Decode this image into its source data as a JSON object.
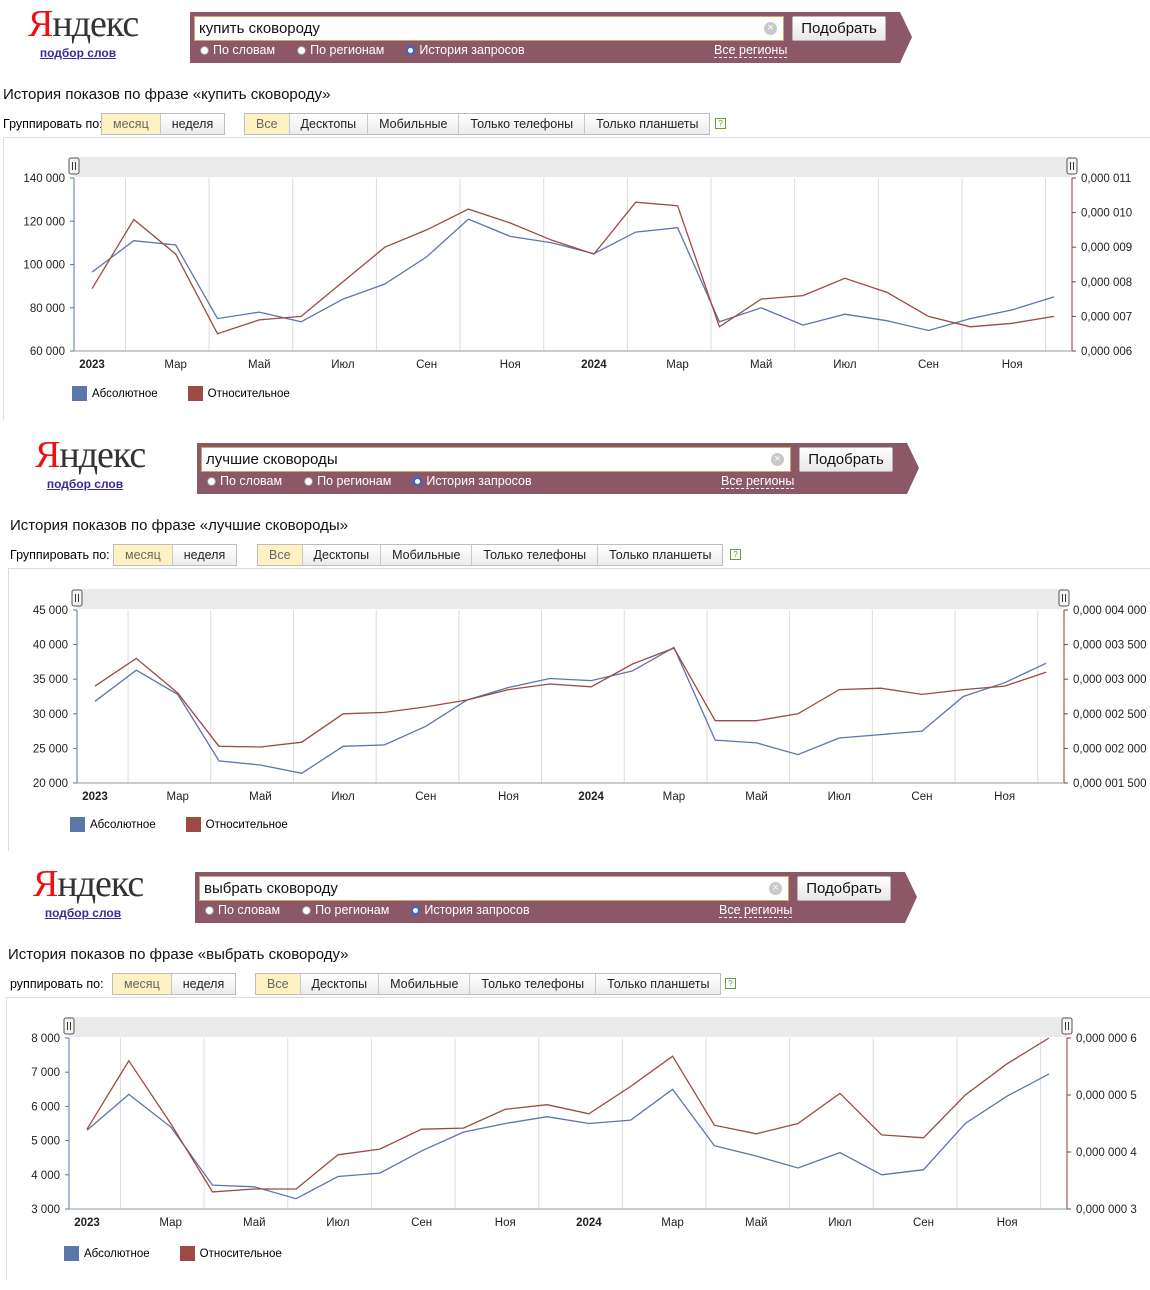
{
  "logo": {
    "word_first": "Я",
    "word_rest": "ндекс",
    "sub": "подбор слов"
  },
  "search": {
    "pick_button": "Подобрать",
    "radio_words": "По словам",
    "radio_regions": "По регионам",
    "radio_history": "История запросов",
    "all_regions": "Все регионы"
  },
  "group": {
    "label": "Группировать по:",
    "month": "месяц",
    "week": "неделя",
    "devices": [
      "Все",
      "Десктопы",
      "Мобильные",
      "Только телефоны",
      "Только планшеты"
    ]
  },
  "colors": {
    "absolute": "#5b76a8",
    "relative": "#9c4a42",
    "bar": "#8c5868",
    "axis_right": "#8b3a34"
  },
  "legend": {
    "absolute": "Абсолютное",
    "relative": "Относительное"
  },
  "panels": [
    {
      "query": "купить сковороду",
      "title": "История показов по фразе «купить сковороду»",
      "group_label_text": "Группировать по:"
    },
    {
      "query": "лучшие сковороды",
      "title": "История показов по фразе «лучшие сковороды»",
      "group_label_text": "Группировать по:"
    },
    {
      "query": "выбрать сковороду",
      "title": "История показов по фразе «выбрать сковороду»",
      "group_label_text": "руппировать по:"
    }
  ],
  "chart_data": [
    {
      "type": "line",
      "x": [
        "2023-01",
        "2023-02",
        "2023-03",
        "2023-04",
        "2023-05",
        "2023-06",
        "2023-07",
        "2023-08",
        "2023-09",
        "2023-10",
        "2023-11",
        "2023-12",
        "2024-01",
        "2024-02",
        "2024-03",
        "2024-04",
        "2024-05",
        "2024-06",
        "2024-07",
        "2024-08",
        "2024-09",
        "2024-10",
        "2024-11",
        "2024-12"
      ],
      "x_tick_labels": [
        "2023",
        "Мар",
        "Май",
        "Июл",
        "Сен",
        "Ноя",
        "2024",
        "Мар",
        "Май",
        "Июл",
        "Сен",
        "Ноя"
      ],
      "y_ticks": [
        "60 000",
        "80 000",
        "100 000",
        "120 000",
        "140 000"
      ],
      "ylim": [
        60000,
        140000
      ],
      "y2_ticks": [
        "0,000 006",
        "0,000 007",
        "0,000 008",
        "0,000 009",
        "0,000 010",
        "0,000 011"
      ],
      "y2lim": [
        6e-06,
        1.1e-05
      ],
      "grid": true,
      "legend": "bottom-left",
      "series": [
        {
          "name": "Абсолютное",
          "axis": "left",
          "values": [
            96500,
            111000,
            109000,
            75000,
            78000,
            73500,
            84000,
            91000,
            103500,
            121000,
            113000,
            110000,
            105000,
            115000,
            117000,
            73500,
            80000,
            72000,
            77000,
            74000,
            69500,
            75000,
            79000,
            85000
          ]
        },
        {
          "name": "Относительное",
          "axis": "right",
          "values": [
            7.8e-06,
            9.8e-06,
            8.8e-06,
            6.5e-06,
            6.9e-06,
            7e-06,
            8e-06,
            9e-06,
            9.5e-06,
            1.01e-05,
            9.7e-06,
            9.2e-06,
            8.8e-06,
            1.03e-05,
            1.02e-05,
            6.7e-06,
            7.5e-06,
            7.6e-06,
            8.1e-06,
            7.7e-06,
            7e-06,
            6.7e-06,
            6.8e-06,
            7e-06
          ]
        }
      ]
    },
    {
      "type": "line",
      "x": [
        "2023-01",
        "2023-02",
        "2023-03",
        "2023-04",
        "2023-05",
        "2023-06",
        "2023-07",
        "2023-08",
        "2023-09",
        "2023-10",
        "2023-11",
        "2023-12",
        "2024-01",
        "2024-02",
        "2024-03",
        "2024-04",
        "2024-05",
        "2024-06",
        "2024-07",
        "2024-08",
        "2024-09",
        "2024-10",
        "2024-11",
        "2024-12"
      ],
      "x_tick_labels": [
        "2023",
        "Мар",
        "Май",
        "Июл",
        "Сен",
        "Ноя",
        "2024",
        "Мар",
        "Май",
        "Июл",
        "Сен",
        "Ноя"
      ],
      "y_ticks": [
        "20 000",
        "25 000",
        "30 000",
        "35 000",
        "40 000",
        "45 000"
      ],
      "ylim": [
        20000,
        45000
      ],
      "y2_ticks": [
        "0,000 001 500",
        "0,000 002 000",
        "0,000 002 500",
        "0,000 003 000",
        "0,000 003 500",
        "0,000 004 000"
      ],
      "y2lim": [
        1.5e-06,
        4e-06
      ],
      "grid": true,
      "legend": "bottom-left",
      "series": [
        {
          "name": "Абсолютное",
          "axis": "left",
          "values": [
            31800,
            36300,
            32800,
            23200,
            22600,
            21400,
            25300,
            25500,
            28200,
            32000,
            33800,
            35100,
            34800,
            36200,
            39600,
            26200,
            25800,
            24100,
            26500,
            27000,
            27500,
            32500,
            34500,
            37300
          ]
        },
        {
          "name": "Относительное",
          "axis": "right",
          "values": [
            2.9e-06,
            3.3e-06,
            2.8e-06,
            2.03e-06,
            2.02e-06,
            2.09e-06,
            2.5e-06,
            2.52e-06,
            2.6e-06,
            2.7e-06,
            2.85e-06,
            2.93e-06,
            2.89e-06,
            3.22e-06,
            3.45e-06,
            2.4e-06,
            2.4e-06,
            2.5e-06,
            2.85e-06,
            2.87e-06,
            2.78e-06,
            2.85e-06,
            2.9e-06,
            3.1e-06
          ]
        }
      ]
    },
    {
      "type": "line",
      "x": [
        "2023-01",
        "2023-02",
        "2023-03",
        "2023-04",
        "2023-05",
        "2023-06",
        "2023-07",
        "2023-08",
        "2023-09",
        "2023-10",
        "2023-11",
        "2023-12",
        "2024-01",
        "2024-02",
        "2024-03",
        "2024-04",
        "2024-05",
        "2024-06",
        "2024-07",
        "2024-08",
        "2024-09",
        "2024-10",
        "2024-11",
        "2024-12"
      ],
      "x_tick_labels": [
        "2023",
        "Мар",
        "Май",
        "Июл",
        "Сен",
        "Ноя",
        "2024",
        "Мар",
        "Май",
        "Июл",
        "Сен",
        "Ноя"
      ],
      "y_ticks": [
        "3 000",
        "4 000",
        "5 000",
        "6 000",
        "7 000",
        "8 000"
      ],
      "ylim": [
        3000,
        8000
      ],
      "y2_ticks": [
        "0,000 000 3",
        "0,000 000 4",
        "0,000 000 5",
        "0,000 000 6"
      ],
      "y2lim": [
        3e-07,
        6e-07
      ],
      "grid": true,
      "legend": "bottom-left",
      "series": [
        {
          "name": "Абсолютное",
          "axis": "left",
          "values": [
            5300,
            6350,
            5400,
            3700,
            3650,
            3300,
            3950,
            4050,
            4700,
            5250,
            5500,
            5700,
            5500,
            5600,
            6500,
            4850,
            4550,
            4200,
            4650,
            4000,
            4150,
            5500,
            6300,
            6950
          ]
        },
        {
          "name": "Относительное",
          "axis": "right",
          "values": [
            4.4e-07,
            5.6e-07,
            4.5e-07,
            3.3e-07,
            3.35e-07,
            3.35e-07,
            3.95e-07,
            4.05e-07,
            4.4e-07,
            4.42e-07,
            4.75e-07,
            4.83e-07,
            4.67e-07,
            5.15e-07,
            5.68e-07,
            4.47e-07,
            4.32e-07,
            4.5e-07,
            5.03e-07,
            4.3e-07,
            4.25e-07,
            5e-07,
            5.55e-07,
            6e-07
          ]
        }
      ]
    }
  ]
}
